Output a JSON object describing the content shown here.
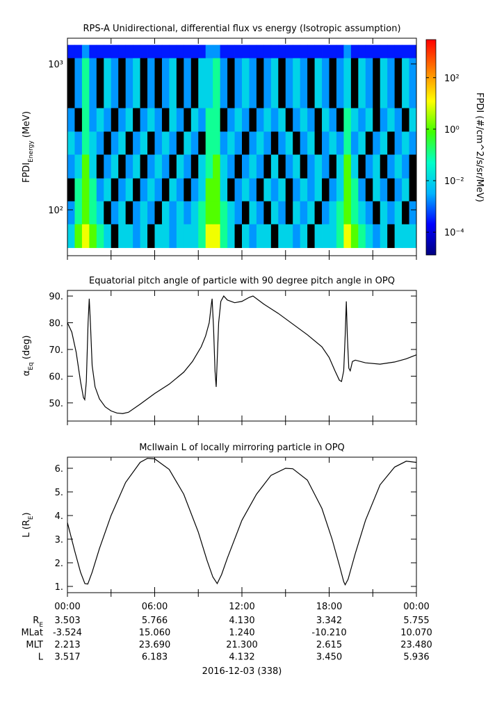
{
  "chart_data": [
    {
      "type": "heatmap",
      "title": "RPS-A Unidirectional, differential flux vs energy (Isotropic assumption)",
      "ylabel": [
        {
          "text": "FPDI"
        },
        {
          "text": "Energy",
          "sub": true
        },
        {
          "text": " (MeV)"
        }
      ],
      "log_y": true,
      "ylim": [
        48.5,
        1500
      ],
      "yticks": [
        {
          "value": 100,
          "label": "10²"
        },
        {
          "value": 1000,
          "label": "10³"
        }
      ],
      "xlim": [
        0,
        24
      ],
      "xticks": [
        0,
        3,
        6,
        9,
        12,
        15,
        18,
        21,
        24
      ],
      "time_bins": [
        0,
        0.5,
        1,
        1.5,
        2,
        2.5,
        3,
        3.5,
        4,
        4.5,
        5,
        5.5,
        6,
        6.5,
        7,
        7.5,
        8,
        8.5,
        9,
        9.5,
        10,
        10.5,
        11,
        11.5,
        12,
        12.5,
        13,
        13.5,
        14,
        14.5,
        15,
        15.5,
        16,
        16.5,
        17,
        17.5,
        18,
        18.5,
        19,
        19.5,
        20,
        20.5,
        21,
        21.5,
        22,
        22.5,
        23,
        23.5,
        24
      ],
      "energy_bins": [
        55,
        80,
        115,
        165,
        240,
        345,
        500,
        1100,
        1350
      ],
      "z": [
        [
          0.01,
          1,
          10,
          1,
          0.1,
          0.01,
          null,
          0.01,
          0.01,
          0.002,
          0.01,
          null,
          0.01,
          0.01,
          0.002,
          0.01,
          0.01,
          0.01,
          0.1,
          10,
          10,
          0.1,
          0.01,
          null,
          0.01,
          0.002,
          0.01,
          0.01,
          null,
          0.01,
          0.01,
          0.002,
          0.01,
          null,
          0.01,
          0.01,
          0.01,
          0.1,
          10,
          1,
          0.1,
          0.01,
          0.002,
          0.01,
          null,
          0.01,
          0.01,
          0.01
        ],
        [
          0.002,
          0.1,
          1,
          0.1,
          0.01,
          null,
          0.002,
          0.01,
          null,
          0.002,
          0.01,
          0.002,
          null,
          0.01,
          0.002,
          0.01,
          0.002,
          0.01,
          0.1,
          1,
          1,
          0.1,
          0.01,
          0.002,
          null,
          0.01,
          0.002,
          null,
          0.01,
          0.002,
          null,
          0.01,
          0.002,
          0.01,
          null,
          0.002,
          0.01,
          0.1,
          1,
          0.1,
          0.01,
          0.002,
          null,
          0.01,
          0.002,
          0.01,
          null,
          0.002
        ],
        [
          null,
          0.1,
          1,
          0.1,
          0.002,
          0.01,
          null,
          0.002,
          0.01,
          null,
          0.002,
          0.01,
          0.002,
          null,
          0.01,
          0.002,
          null,
          0.002,
          0.01,
          1,
          1,
          0.01,
          null,
          0.002,
          0.01,
          0.002,
          null,
          0.01,
          0.002,
          0.01,
          null,
          0.002,
          0.01,
          0.002,
          0.01,
          null,
          0.002,
          0.01,
          1,
          0.1,
          0.002,
          null,
          0.01,
          0.002,
          null,
          0.002,
          0.01,
          null
        ],
        [
          0.002,
          0.01,
          1,
          0.01,
          null,
          0.002,
          0.01,
          null,
          0.002,
          0.01,
          null,
          0.002,
          0.01,
          0.002,
          null,
          0.01,
          0.002,
          null,
          0.01,
          0.1,
          1,
          0.01,
          0.002,
          null,
          0.002,
          0.01,
          0.002,
          null,
          0.01,
          null,
          0.002,
          0.01,
          null,
          0.002,
          0.01,
          0.002,
          null,
          0.01,
          1,
          0.01,
          null,
          0.002,
          0.01,
          null,
          0.002,
          0.01,
          0.002,
          null
        ],
        [
          0.01,
          0.002,
          0.1,
          0.01,
          0.002,
          null,
          0.002,
          0.01,
          null,
          0.002,
          0.01,
          null,
          0.002,
          0.01,
          0.002,
          null,
          0.01,
          0.002,
          null,
          0.1,
          0.1,
          0.002,
          0.01,
          0.002,
          null,
          0.002,
          0.01,
          0.002,
          null,
          0.002,
          0.01,
          null,
          0.002,
          0.01,
          null,
          0.002,
          0.01,
          0.002,
          0.1,
          0.002,
          0.01,
          null,
          0.002,
          0.01,
          null,
          0.002,
          0.01,
          0.002
        ],
        [
          0.002,
          null,
          0.1,
          0.002,
          0.01,
          0.002,
          null,
          0.002,
          0.01,
          null,
          0.002,
          0.01,
          0.002,
          null,
          0.01,
          0.002,
          null,
          0.01,
          0.002,
          0.1,
          0.1,
          null,
          0.002,
          0.01,
          0.002,
          null,
          0.002,
          0.01,
          0.002,
          0.01,
          null,
          0.002,
          0.01,
          0.002,
          null,
          0.01,
          0.002,
          null,
          0.1,
          0.01,
          0.002,
          0.01,
          null,
          0.002,
          0.01,
          0.002,
          null,
          0.01
        ],
        [
          null,
          0.002,
          0.1,
          0.002,
          null,
          0.01,
          0.002,
          null,
          0.002,
          0.01,
          null,
          0.002,
          null,
          0.002,
          0.01,
          null,
          0.002,
          null,
          0.01,
          0.01,
          0.1,
          0.002,
          null,
          0.002,
          0.01,
          0.002,
          null,
          0.002,
          0.01,
          null,
          0.002,
          0.01,
          0.002,
          null,
          0.01,
          0.002,
          null,
          0.002,
          0.01,
          null,
          0.01,
          0.002,
          null,
          0.01,
          0.002,
          null,
          0.01,
          0.002
        ],
        [
          0.0003,
          0.0003,
          0.002,
          0.0003,
          0.0003,
          0.0003,
          0.0003,
          0.0003,
          0.0003,
          0.0003,
          0.0003,
          0.0003,
          0.0003,
          0.0003,
          0.0003,
          0.0003,
          0.0003,
          0.0003,
          0.0003,
          0.002,
          0.002,
          0.0003,
          0.0003,
          0.0003,
          0.0003,
          0.0003,
          0.0003,
          0.0003,
          0.0003,
          0.0003,
          0.0003,
          0.0003,
          0.0003,
          0.0003,
          0.0003,
          0.0003,
          0.0003,
          0.0003,
          0.002,
          0.0003,
          0.0003,
          0.0003,
          0.0003,
          0.0003,
          0.0003,
          0.0003,
          0.0003,
          0.0003
        ]
      ],
      "null_color": "#000000",
      "colormap": [
        "#000080",
        "#0000ff",
        "#00b4ff",
        "#00ffc8",
        "#40ff00",
        "#ffff00",
        "#ff8000",
        "#ff0000"
      ],
      "zlim": [
        1.3e-05,
        3000
      ],
      "zticks": [
        {
          "value": 0.0001,
          "label": "10⁻⁴"
        },
        {
          "value": 0.01,
          "label": "10⁻²"
        },
        {
          "value": 1,
          "label": "10⁰"
        },
        {
          "value": 100,
          "label": "10²"
        }
      ],
      "zlabel": "FPDI (#/cm^2/s/sr/MeV)"
    },
    {
      "type": "line",
      "title": "Equatorial pitch angle of particle with 90 degree pitch angle in OPQ",
      "ylabel": [
        {
          "text": "α"
        },
        {
          "text": "Eq",
          "sub": true
        },
        {
          "text": " (deg)"
        }
      ],
      "ylim": [
        43.2,
        92.1
      ],
      "yticks": [
        {
          "value": 50,
          "label": "50."
        },
        {
          "value": 60,
          "label": "60."
        },
        {
          "value": 70,
          "label": "70."
        },
        {
          "value": 80,
          "label": "80."
        },
        {
          "value": 90,
          "label": "90."
        }
      ],
      "xlim": [
        0,
        24
      ],
      "xticks": [
        0,
        3,
        6,
        9,
        12,
        15,
        18,
        21,
        24
      ],
      "x": [
        0,
        0.3,
        0.6,
        0.9,
        1.1,
        1.19,
        1.3,
        1.42,
        1.5,
        1.58,
        1.7,
        1.9,
        2.2,
        2.6,
        3.0,
        3.4,
        3.8,
        4.2,
        5.0,
        6.0,
        7.0,
        8.0,
        8.6,
        9.2,
        9.5,
        9.75,
        9.9,
        9.95,
        10.05,
        10.15,
        10.23,
        10.3,
        10.4,
        10.55,
        10.75,
        11.0,
        11.5,
        12.0,
        12.5,
        12.76,
        13.5,
        14.5,
        15.5,
        16.5,
        17.5,
        18.0,
        18.4,
        18.7,
        18.85,
        19.0,
        19.1,
        19.18,
        19.25,
        19.35,
        19.45,
        19.6,
        19.8,
        20.5,
        21.5,
        22.5,
        23.3,
        24
      ],
      "series": [
        {
          "color": "#000000",
          "values": [
            80,
            76.5,
            69,
            58,
            52,
            51.2,
            58,
            80,
            89,
            80,
            64,
            56,
            51.5,
            48.5,
            47,
            46.2,
            46,
            46.5,
            49.5,
            53.5,
            57,
            61.5,
            65.5,
            71,
            75,
            80,
            87,
            89,
            78,
            62,
            56,
            66,
            80,
            88,
            90,
            88.5,
            87.5,
            88,
            89.5,
            90,
            87,
            83.5,
            79.5,
            75.5,
            71,
            67,
            62,
            58.5,
            58,
            62,
            75,
            88,
            75,
            63,
            62,
            65.5,
            66,
            65,
            64.5,
            65.3,
            66.5,
            68
          ]
        }
      ]
    },
    {
      "type": "line",
      "title": "McIlwain L of locally mirroring particle in OPQ",
      "ylabel": [
        {
          "text": "L (R"
        },
        {
          "text": "E",
          "sub": true
        },
        {
          "text": ")"
        }
      ],
      "ylim": [
        0.735,
        6.47
      ],
      "yticks": [
        {
          "value": 1,
          "label": "1."
        },
        {
          "value": 2,
          "label": "2."
        },
        {
          "value": 3,
          "label": "3."
        },
        {
          "value": 4,
          "label": "4."
        },
        {
          "value": 5,
          "label": "5."
        },
        {
          "value": 6,
          "label": "6."
        }
      ],
      "xlim": [
        0,
        24
      ],
      "xticks": [
        {
          "value": 0,
          "label": "00:00"
        },
        {
          "value": 6,
          "label": "06:00"
        },
        {
          "value": 12,
          "label": "12:00"
        },
        {
          "value": 18,
          "label": "18:00"
        },
        {
          "value": 24,
          "label": "00:00"
        }
      ],
      "xminor": [
        3,
        9,
        15,
        21
      ],
      "x": [
        0,
        0.5,
        0.9,
        1.2,
        1.4,
        1.7,
        2.2,
        3.0,
        4.0,
        5.0,
        5.5,
        6.0,
        7.0,
        8.0,
        9.0,
        9.6,
        10.0,
        10.3,
        10.6,
        11.0,
        12.0,
        13.0,
        14.0,
        15.0,
        15.5,
        16.5,
        17.5,
        18.2,
        18.7,
        19.0,
        19.1,
        19.3,
        19.8,
        20.5,
        21.5,
        22.5,
        23.3,
        24
      ],
      "series": [
        {
          "color": "#000000",
          "values": [
            3.7,
            2.5,
            1.6,
            1.12,
            1.1,
            1.6,
            2.6,
            4.0,
            5.4,
            6.25,
            6.42,
            6.4,
            5.95,
            4.9,
            3.3,
            2.1,
            1.4,
            1.12,
            1.5,
            2.2,
            3.8,
            4.9,
            5.7,
            6.0,
            5.98,
            5.5,
            4.3,
            3.0,
            1.9,
            1.2,
            1.07,
            1.3,
            2.4,
            3.8,
            5.3,
            6.05,
            6.3,
            6.25
          ]
        }
      ]
    }
  ],
  "ephemeris": {
    "labels": [
      [
        {
          "text": "R"
        },
        {
          "text": "E",
          "sub": true
        }
      ],
      [
        {
          "text": "MLat"
        }
      ],
      [
        {
          "text": "MLT"
        }
      ],
      [
        {
          "text": "L"
        }
      ]
    ],
    "rows": [
      [
        "3.503",
        "5.766",
        "4.130",
        "3.342",
        "5.755"
      ],
      [
        "-3.524",
        "15.060",
        "1.240",
        "-10.210",
        "10.070"
      ],
      [
        "2.213",
        "23.690",
        "21.300",
        "2.615",
        "23.480"
      ],
      [
        "3.517",
        "6.183",
        "4.132",
        "3.450",
        "5.936"
      ]
    ],
    "date": "2016-12-03 (338)"
  }
}
